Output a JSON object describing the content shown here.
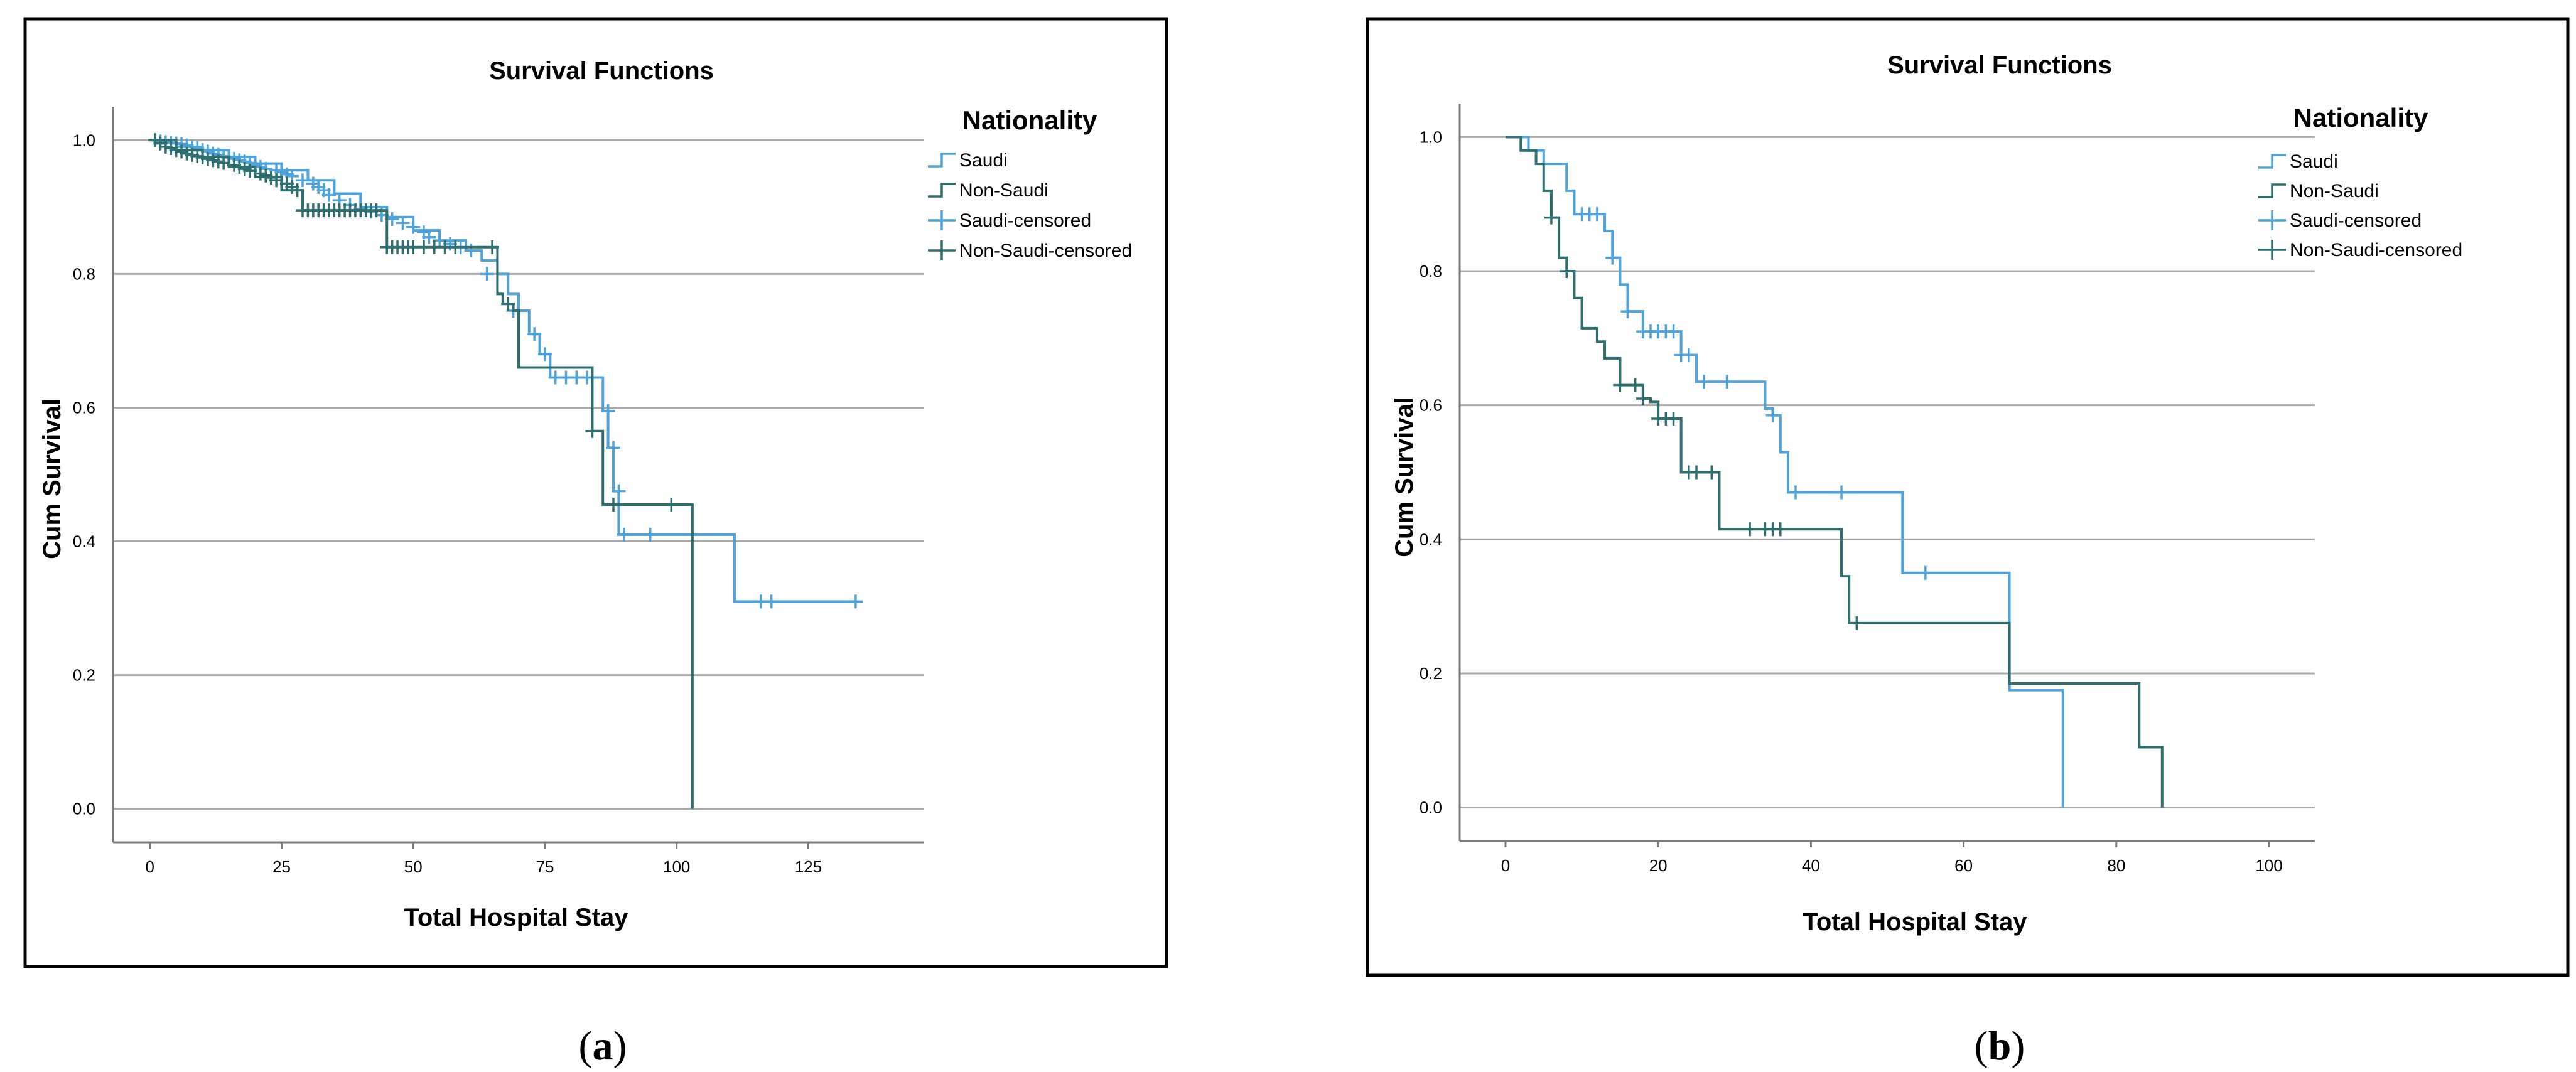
{
  "panels": [
    {
      "caption_open": "(",
      "caption_letter": "a",
      "caption_close": ")"
    },
    {
      "caption_open": "(",
      "caption_letter": "b",
      "caption_close": ")"
    }
  ],
  "chart_data": [
    {
      "type": "line",
      "step": true,
      "title": "Survival Functions",
      "xlabel": "Total Hospital Stay",
      "ylabel": "Cum Survival",
      "legend_title": "Nationality",
      "legend": [
        "Saudi",
        "Non-Saudi",
        "Saudi-censored",
        "Non-Saudi-censored"
      ],
      "xlim": [
        -7,
        147
      ],
      "ylim": [
        -0.05,
        1.05
      ],
      "xticks": [
        0,
        25,
        50,
        75,
        100,
        125
      ],
      "yticks": [
        0.0,
        0.2,
        0.4,
        0.6,
        0.8,
        1.0
      ],
      "ytick_labels": [
        "0.0",
        "0.2",
        "0.4",
        "0.6",
        "0.8",
        "1.0"
      ],
      "grid": "horizontal",
      "series": [
        {
          "name": "Saudi",
          "color": "#4fa3d9",
          "x": [
            0,
            5,
            10,
            15,
            20,
            25,
            30,
            35,
            40,
            45,
            50,
            55,
            60,
            63,
            66,
            68,
            70,
            72,
            74,
            76,
            86,
            87,
            88,
            89,
            111,
            134
          ],
          "y": [
            1.0,
            0.99,
            0.985,
            0.975,
            0.965,
            0.955,
            0.94,
            0.92,
            0.9,
            0.885,
            0.865,
            0.85,
            0.835,
            0.82,
            0.8,
            0.77,
            0.745,
            0.71,
            0.68,
            0.645,
            0.595,
            0.54,
            0.475,
            0.41,
            0.31,
            0.31
          ],
          "censored": [
            [
              1,
              1.0
            ],
            [
              2,
              0.998
            ],
            [
              3,
              0.997
            ],
            [
              4,
              0.996
            ],
            [
              5,
              0.995
            ],
            [
              6,
              0.994
            ],
            [
              7,
              0.992
            ],
            [
              8,
              0.99
            ],
            [
              9,
              0.988
            ],
            [
              10,
              0.985
            ],
            [
              11,
              0.983
            ],
            [
              12,
              0.98
            ],
            [
              13,
              0.978
            ],
            [
              14,
              0.976
            ],
            [
              15,
              0.974
            ],
            [
              16,
              0.972
            ],
            [
              17,
              0.97
            ],
            [
              18,
              0.968
            ],
            [
              19,
              0.966
            ],
            [
              20,
              0.963
            ],
            [
              21,
              0.96
            ],
            [
              22,
              0.957
            ],
            [
              24,
              0.955
            ],
            [
              25,
              0.952
            ],
            [
              26,
              0.949
            ],
            [
              27,
              0.946
            ],
            [
              29,
              0.94
            ],
            [
              31,
              0.935
            ],
            [
              32,
              0.93
            ],
            [
              33,
              0.925
            ],
            [
              34,
              0.918
            ],
            [
              36,
              0.91
            ],
            [
              38,
              0.903
            ],
            [
              40,
              0.897
            ],
            [
              42,
              0.893
            ],
            [
              44,
              0.888
            ],
            [
              46,
              0.882
            ],
            [
              48,
              0.876
            ],
            [
              50,
              0.87
            ],
            [
              52,
              0.862
            ],
            [
              53,
              0.855
            ],
            [
              55,
              0.85
            ],
            [
              57,
              0.845
            ],
            [
              59,
              0.84
            ],
            [
              61,
              0.835
            ],
            [
              64,
              0.8
            ],
            [
              69,
              0.745
            ],
            [
              73,
              0.71
            ],
            [
              75,
              0.68
            ],
            [
              77,
              0.645
            ],
            [
              79,
              0.645
            ],
            [
              81,
              0.645
            ],
            [
              83,
              0.645
            ],
            [
              87,
              0.595
            ],
            [
              88,
              0.54
            ],
            [
              89,
              0.475
            ],
            [
              90,
              0.41
            ],
            [
              95,
              0.41
            ],
            [
              116,
              0.31
            ],
            [
              118,
              0.31
            ],
            [
              134,
              0.31
            ]
          ]
        },
        {
          "name": "Non-Saudi",
          "color": "#2e6e6e",
          "x": [
            0,
            5,
            10,
            15,
            20,
            25,
            29,
            45,
            60,
            66,
            67,
            69,
            70,
            84,
            86,
            103,
            103
          ],
          "y": [
            1.0,
            0.985,
            0.975,
            0.96,
            0.945,
            0.925,
            0.895,
            0.84,
            0.84,
            0.77,
            0.755,
            0.745,
            0.66,
            0.565,
            0.455,
            0.455,
            0.0
          ],
          "censored": [
            [
              1,
              1.0
            ],
            [
              2,
              0.995
            ],
            [
              3,
              0.99
            ],
            [
              4,
              0.988
            ],
            [
              5,
              0.985
            ],
            [
              6,
              0.983
            ],
            [
              7,
              0.98
            ],
            [
              8,
              0.978
            ],
            [
              9,
              0.976
            ],
            [
              10,
              0.974
            ],
            [
              11,
              0.972
            ],
            [
              12,
              0.97
            ],
            [
              13,
              0.968
            ],
            [
              14,
              0.966
            ],
            [
              16,
              0.963
            ],
            [
              17,
              0.96
            ],
            [
              18,
              0.957
            ],
            [
              19,
              0.954
            ],
            [
              21,
              0.95
            ],
            [
              22,
              0.947
            ],
            [
              23,
              0.944
            ],
            [
              24,
              0.94
            ],
            [
              26,
              0.935
            ],
            [
              27,
              0.93
            ],
            [
              28,
              0.925
            ],
            [
              29,
              0.895
            ],
            [
              30,
              0.895
            ],
            [
              31,
              0.895
            ],
            [
              32,
              0.895
            ],
            [
              33,
              0.895
            ],
            [
              34,
              0.895
            ],
            [
              35,
              0.895
            ],
            [
              36,
              0.895
            ],
            [
              37,
              0.895
            ],
            [
              38,
              0.895
            ],
            [
              39,
              0.895
            ],
            [
              40,
              0.895
            ],
            [
              41,
              0.895
            ],
            [
              42,
              0.895
            ],
            [
              43,
              0.895
            ],
            [
              45,
              0.84
            ],
            [
              46,
              0.84
            ],
            [
              47,
              0.84
            ],
            [
              48,
              0.84
            ],
            [
              49,
              0.84
            ],
            [
              50,
              0.84
            ],
            [
              52,
              0.84
            ],
            [
              54,
              0.84
            ],
            [
              56,
              0.84
            ],
            [
              58,
              0.84
            ],
            [
              65,
              0.84
            ],
            [
              68,
              0.755
            ],
            [
              84,
              0.565
            ],
            [
              88,
              0.455
            ],
            [
              99,
              0.455
            ]
          ]
        }
      ]
    },
    {
      "type": "line",
      "step": true,
      "title": "Survival Functions",
      "xlabel": "Total Hospital Stay",
      "ylabel": "Cum Survival",
      "legend_title": "Nationality",
      "legend": [
        "Saudi",
        "Non-Saudi",
        "Saudi-censored",
        "Non-Saudi-censored"
      ],
      "xlim": [
        -6,
        106
      ],
      "ylim": [
        -0.05,
        1.05
      ],
      "xticks": [
        0,
        20,
        40,
        60,
        80,
        100
      ],
      "yticks": [
        0.0,
        0.2,
        0.4,
        0.6,
        0.8,
        1.0
      ],
      "ytick_labels": [
        "0.0",
        "0.2",
        "0.4",
        "0.6",
        "0.8",
        "1.0"
      ],
      "grid": "horizontal",
      "series": [
        {
          "name": "Saudi",
          "color": "#4fa3d9",
          "x": [
            0,
            3,
            5,
            8,
            9,
            13,
            14,
            15,
            16,
            18,
            23,
            25,
            34,
            35,
            36,
            37,
            52,
            66,
            73,
            73
          ],
          "y": [
            1.0,
            0.98,
            0.96,
            0.92,
            0.885,
            0.86,
            0.82,
            0.78,
            0.74,
            0.71,
            0.675,
            0.635,
            0.595,
            0.585,
            0.53,
            0.47,
            0.35,
            0.175,
            0.175,
            0.0
          ],
          "censored": [
            [
              10,
              0.885
            ],
            [
              11,
              0.885
            ],
            [
              12,
              0.885
            ],
            [
              14,
              0.82
            ],
            [
              16,
              0.74
            ],
            [
              18,
              0.71
            ],
            [
              19,
              0.71
            ],
            [
              20,
              0.71
            ],
            [
              21,
              0.71
            ],
            [
              22,
              0.71
            ],
            [
              23,
              0.675
            ],
            [
              24,
              0.675
            ],
            [
              26,
              0.635
            ],
            [
              29,
              0.635
            ],
            [
              35,
              0.585
            ],
            [
              38,
              0.47
            ],
            [
              44,
              0.47
            ],
            [
              55,
              0.35
            ]
          ]
        },
        {
          "name": "Non-Saudi",
          "color": "#2e6e6e",
          "x": [
            0,
            2,
            4,
            5,
            6,
            7,
            8,
            9,
            10,
            12,
            13,
            15,
            18,
            19,
            20,
            23,
            28,
            44,
            45,
            66,
            83,
            86,
            86
          ],
          "y": [
            1.0,
            0.98,
            0.96,
            0.92,
            0.88,
            0.82,
            0.8,
            0.76,
            0.715,
            0.695,
            0.67,
            0.63,
            0.61,
            0.605,
            0.58,
            0.5,
            0.415,
            0.345,
            0.275,
            0.185,
            0.09,
            0.09,
            0.0
          ],
          "censored": [
            [
              6,
              0.88
            ],
            [
              8,
              0.8
            ],
            [
              15,
              0.63
            ],
            [
              17,
              0.63
            ],
            [
              18,
              0.61
            ],
            [
              20,
              0.58
            ],
            [
              21,
              0.58
            ],
            [
              22,
              0.58
            ],
            [
              24,
              0.5
            ],
            [
              25,
              0.5
            ],
            [
              27,
              0.5
            ],
            [
              32,
              0.415
            ],
            [
              34,
              0.415
            ],
            [
              35,
              0.415
            ],
            [
              36,
              0.415
            ],
            [
              46,
              0.275
            ]
          ]
        }
      ]
    }
  ]
}
